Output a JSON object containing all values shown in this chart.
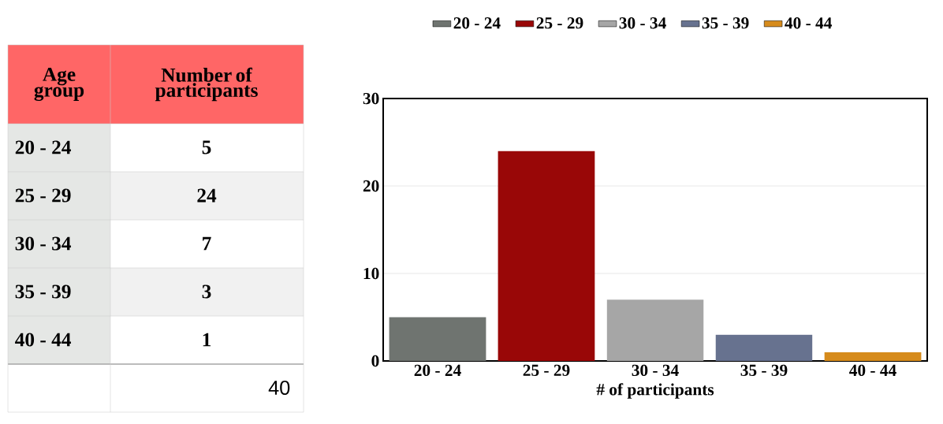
{
  "chart_data": [
    {
      "type": "other",
      "categories": [
        "20 - 24",
        "25 - 29",
        "30 - 34",
        "35 - 39",
        "40 - 44"
      ],
      "value_labels": [
        "5",
        "24",
        "7",
        "3",
        "1"
      ],
      "annotations": [
        "Age group",
        "Number of participants",
        "40"
      ]
    },
    {
      "type": "bar",
      "categories": [
        "20 - 24",
        "25 - 29",
        "30 - 34",
        "35 - 39",
        "40 - 44"
      ],
      "series": [
        {
          "name": "20 - 24",
          "color": "#6f7470",
          "values": [
            5,
            null,
            null,
            null,
            null
          ]
        },
        {
          "name": "25 - 29",
          "color": "#990707",
          "values": [
            null,
            24,
            null,
            null,
            null
          ]
        },
        {
          "name": "30 - 34",
          "color": "#a6a6a6",
          "values": [
            null,
            null,
            7,
            null,
            null
          ]
        },
        {
          "name": "35 - 39",
          "color": "#67728f",
          "values": [
            null,
            null,
            null,
            3,
            null
          ]
        },
        {
          "name": "40 - 44",
          "color": "#d68b1c",
          "values": [
            null,
            null,
            null,
            null,
            1
          ]
        }
      ],
      "ylim": [
        0,
        30
      ],
      "yticks": [
        0,
        10,
        20,
        30
      ],
      "grid": "y",
      "legend": "top",
      "xlabel": "# of participants"
    }
  ]
}
